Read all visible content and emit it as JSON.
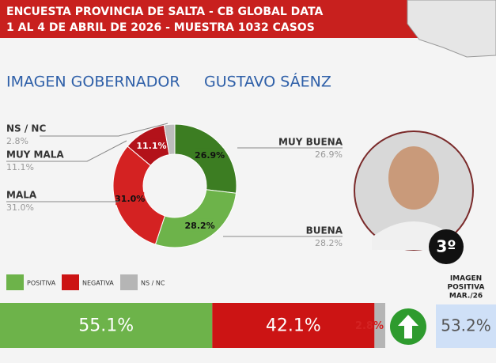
{
  "header": {
    "lines": [
      "ENCUESTA PROVINCIA DE SALTA - CB GLOBAL DATA",
      "1 AL 4 DE ABRIL DE 2026 - MUESTRA 1032 CASOS"
    ]
  },
  "subtitle": [
    "IMAGEN GOBERNADOR",
    "GUSTAVO SÁENZ"
  ],
  "ranking": "3º",
  "comparison": {
    "lines": [
      "IMAGEN",
      "POSITIVA",
      "MAR./26"
    ],
    "value": 53.2,
    "value_label": "53.2%",
    "color": "#cfe0f7"
  },
  "chart_data": [
    {
      "type": "donut",
      "categories": [
        "MUY BUENA",
        "BUENA",
        "MALA",
        "MUY MALA",
        "NS / NC"
      ],
      "values": [
        26.9,
        28.2,
        31.0,
        11.1,
        2.8
      ],
      "value_labels": [
        "26.9%",
        "28.2%",
        "31.0%",
        "11.1%",
        "2.8%"
      ],
      "colors": [
        "#3c7d22",
        "#6db34a",
        "#d42222",
        "#b3121a",
        "#bdbdbd"
      ]
    },
    {
      "type": "stacked_bar",
      "xlim": [
        0,
        100
      ],
      "series": [
        {
          "name": "POSITIVA",
          "color": "#6db34a",
          "values": [
            55.1
          ],
          "value_labels": [
            "55.1%"
          ]
        },
        {
          "name": "NEGATIVA",
          "color": "#cc1414",
          "values": [
            42.1
          ],
          "value_labels": [
            "42.1%"
          ]
        },
        {
          "name": "NS / NC",
          "color": "#b5b5b5",
          "values": [
            2.8
          ],
          "value_labels": [
            "2.8%"
          ]
        }
      ]
    }
  ]
}
